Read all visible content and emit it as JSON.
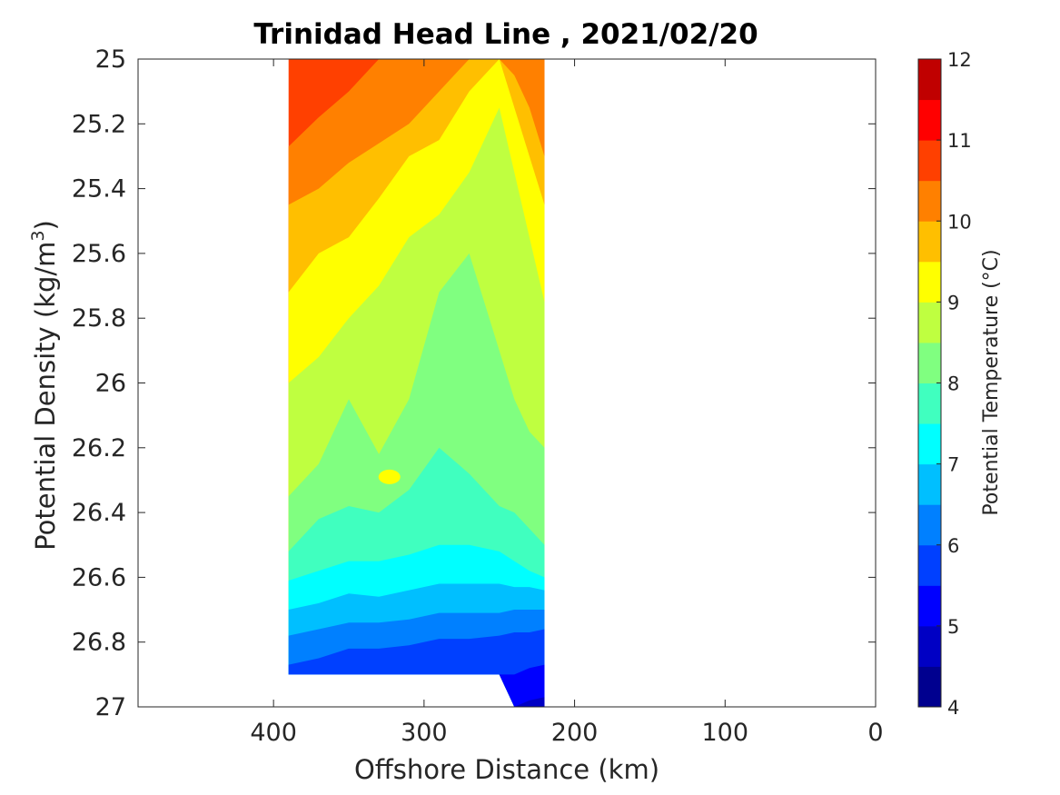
{
  "chart_data": {
    "type": "contourf",
    "title": "Trinidad Head Line , 2021/02/20",
    "xlabel": "Offshore Distance (km)",
    "ylabel": "Potential Density (kg/m",
    "ylabel_superscript": "3",
    "ylabel_close": ")",
    "xlim": [
      490,
      0
    ],
    "ylim": [
      25,
      27
    ],
    "x_reversed": true,
    "y_reversed": true,
    "xticks": [
      {
        "value": 400,
        "label": "400"
      },
      {
        "value": 300,
        "label": "300"
      },
      {
        "value": 200,
        "label": "200"
      },
      {
        "value": 100,
        "label": "100"
      },
      {
        "value": 0,
        "label": "0"
      }
    ],
    "yticks": [
      {
        "value": 25,
        "label": "25"
      },
      {
        "value": 25.2,
        "label": "25.2"
      },
      {
        "value": 25.4,
        "label": "25.4"
      },
      {
        "value": 25.6,
        "label": "25.6"
      },
      {
        "value": 25.8,
        "label": "25.8"
      },
      {
        "value": 26,
        "label": "26"
      },
      {
        "value": 26.2,
        "label": "26.2"
      },
      {
        "value": 26.4,
        "label": "26.4"
      },
      {
        "value": 26.6,
        "label": "26.6"
      },
      {
        "value": 26.8,
        "label": "26.8"
      },
      {
        "value": 27,
        "label": "27"
      }
    ],
    "colorbar": {
      "label": "Potential Temperature (°C)",
      "range": [
        4,
        12
      ],
      "step": 0.5,
      "tick_labels": [
        "4",
        "5",
        "6",
        "7",
        "8",
        "9",
        "10",
        "11",
        "12"
      ],
      "colors": [
        "#00008f",
        "#0000c4",
        "#0000ff",
        "#0040ff",
        "#0080ff",
        "#00bfff",
        "#00ffff",
        "#40ffbf",
        "#80ff80",
        "#bfff40",
        "#ffff00",
        "#ffbf00",
        "#ff8000",
        "#ff4000",
        "#ff0000",
        "#c00000"
      ]
    },
    "section": {
      "stations_km": [
        390,
        370,
        350,
        330,
        310,
        290,
        270,
        250,
        240,
        230,
        220
      ],
      "bottom_density": [
        26.9,
        26.9,
        26.9,
        26.9,
        26.9,
        26.9,
        26.9,
        26.9,
        27.0,
        27.0,
        27.0
      ],
      "isotherms": [
        {
          "value": 10.5,
          "density": [
            25.27,
            25.18,
            25.1,
            25.0,
            25.0,
            25.0,
            25.0,
            25.0,
            25.0,
            25.0,
            25.0
          ]
        },
        {
          "value": 10.0,
          "density": [
            25.45,
            25.4,
            25.32,
            25.26,
            25.2,
            25.1,
            25.0,
            25.0,
            25.05,
            25.15,
            25.3
          ]
        },
        {
          "value": 9.5,
          "density": [
            25.72,
            25.6,
            25.55,
            25.43,
            25.3,
            25.25,
            25.1,
            25.0,
            25.15,
            25.3,
            25.45
          ]
        },
        {
          "value": 9.0,
          "density": [
            26.0,
            25.92,
            25.8,
            25.7,
            25.55,
            25.48,
            25.35,
            25.15,
            25.35,
            25.55,
            25.75
          ]
        },
        {
          "value": 8.5,
          "density": [
            26.35,
            26.25,
            26.05,
            26.22,
            26.05,
            25.72,
            25.6,
            25.9,
            26.05,
            26.15,
            26.2
          ]
        },
        {
          "value": 8.0,
          "density": [
            26.52,
            26.42,
            26.38,
            26.4,
            26.33,
            26.2,
            26.28,
            26.38,
            26.4,
            26.45,
            26.5
          ]
        },
        {
          "value": 7.5,
          "density": [
            26.61,
            26.58,
            26.55,
            26.55,
            26.53,
            26.5,
            26.5,
            26.52,
            26.55,
            26.58,
            26.6
          ]
        },
        {
          "value": 7.0,
          "density": [
            26.7,
            26.68,
            26.65,
            26.66,
            26.64,
            26.62,
            26.62,
            26.62,
            26.63,
            26.63,
            26.64
          ]
        },
        {
          "value": 6.5,
          "density": [
            26.78,
            26.76,
            26.74,
            26.74,
            26.73,
            26.71,
            26.71,
            26.71,
            26.7,
            26.7,
            26.7
          ]
        },
        {
          "value": 6.0,
          "density": [
            26.87,
            26.85,
            26.82,
            26.82,
            26.81,
            26.79,
            26.79,
            26.78,
            26.77,
            26.77,
            26.76
          ]
        },
        {
          "value": 5.5,
          "density": [
            26.9,
            26.9,
            26.9,
            26.9,
            26.9,
            26.9,
            26.9,
            26.9,
            26.9,
            26.88,
            26.87
          ]
        },
        {
          "value": 5.0,
          "density": [
            26.9,
            26.9,
            26.9,
            26.9,
            26.9,
            26.9,
            26.9,
            26.9,
            27.0,
            26.98,
            26.97
          ]
        }
      ],
      "warm_patch": {
        "value": 9.0,
        "x_center": 323,
        "density_center": 26.29
      }
    }
  }
}
